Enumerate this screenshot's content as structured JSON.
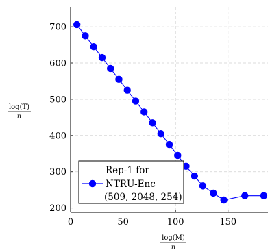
{
  "chart_data": {
    "type": "line",
    "x": [
      6,
      14,
      22,
      30,
      38,
      46,
      54,
      62,
      70,
      78,
      86,
      94,
      102,
      110,
      118,
      126,
      136,
      146,
      166,
      184
    ],
    "series": [
      {
        "name": "NTRU-Enc (509, 2048, 254)",
        "values": [
          706,
          675,
          645,
          615,
          585,
          555,
          525,
          495,
          465,
          435,
          405,
          375,
          345,
          315,
          288,
          261,
          241,
          222,
          234,
          234
        ],
        "color": "#0000ff"
      }
    ],
    "xlim": [
      0,
      188
    ],
    "ylim": [
      188,
      755
    ],
    "xticks": [
      0,
      50,
      100,
      150
    ],
    "yticks": [
      200,
      300,
      400,
      500,
      600,
      700
    ],
    "xlabel_num": "log(M)",
    "xlabel_den": "n",
    "ylabel_num": "log(T)",
    "ylabel_den": "n",
    "legend": {
      "title_line": "Rep-1 for",
      "entry_line": "NTRU-Enc",
      "params_line": "(509, 2048, 254)",
      "position": "bottom-left"
    },
    "grid": true
  }
}
